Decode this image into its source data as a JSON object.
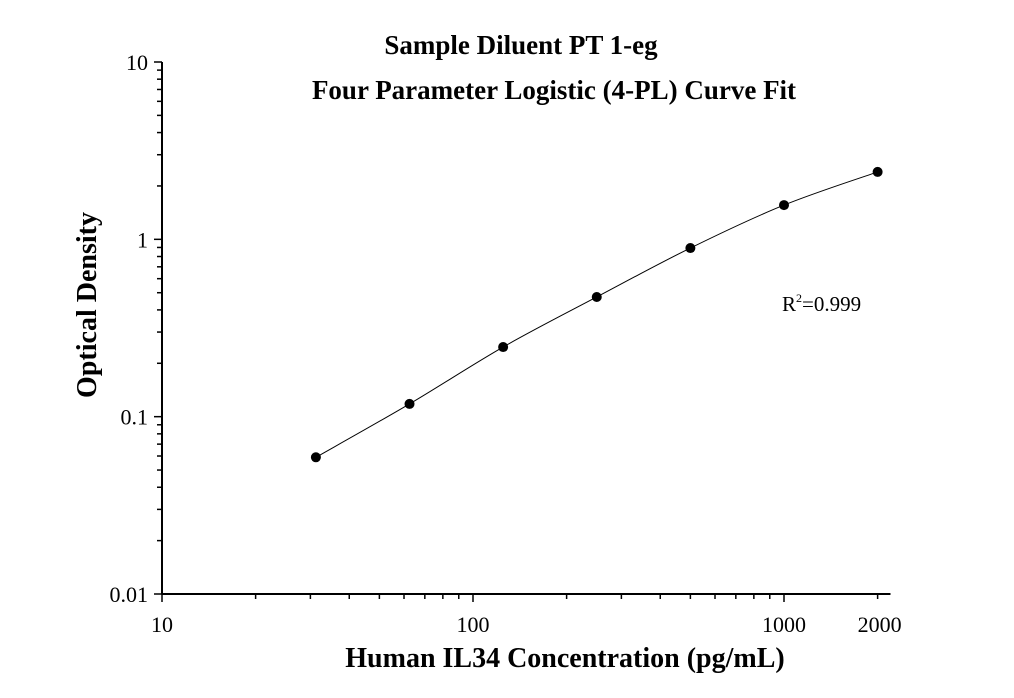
{
  "chart_data": {
    "type": "scatter",
    "title": "Sample Diluent PT 1-eg",
    "subtitle": "Four Parameter Logistic (4-PL) Curve Fit",
    "xlabel": "Human IL34 Concentration (pg/mL)",
    "ylabel": "Optical Density",
    "x_scale": "log",
    "y_scale": "log",
    "xlim": [
      10,
      2200
    ],
    "ylim": [
      0.01,
      10
    ],
    "x_tick_labels": [
      "10",
      "100",
      "1000",
      "2000"
    ],
    "x_tick_values": [
      10,
      100,
      1000,
      2000
    ],
    "y_tick_labels": [
      "0.01",
      "0.1",
      "1",
      "10"
    ],
    "y_tick_values": [
      0.01,
      0.1,
      1,
      10
    ],
    "grid": false,
    "annotation": {
      "text": "R",
      "sup": "2",
      "rest": "=0.999"
    },
    "series": [
      {
        "x": [
          31.25,
          62.5,
          125,
          250,
          500,
          1000,
          2000
        ],
        "y": [
          0.059,
          0.118,
          0.247,
          0.473,
          0.893,
          1.56,
          2.4
        ],
        "marker": "circle",
        "fit": "4-PL curve",
        "color": "#000000"
      }
    ]
  }
}
